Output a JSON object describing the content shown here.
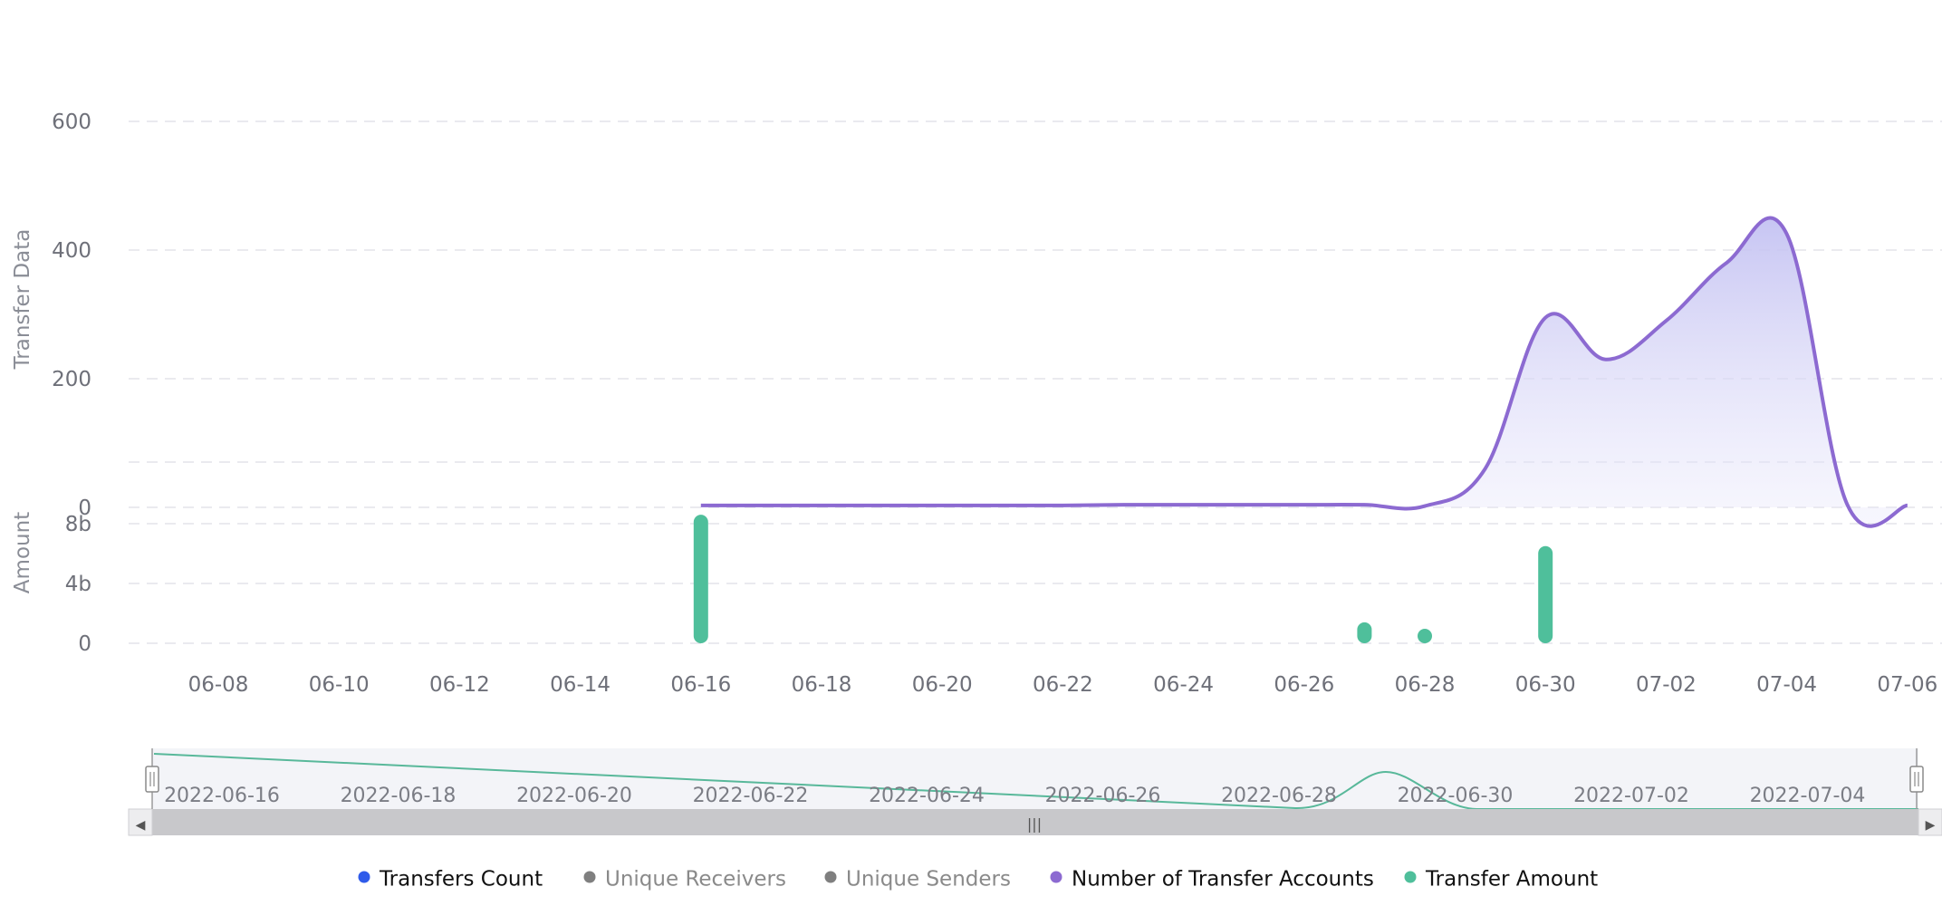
{
  "chart_data": {
    "type": "line",
    "x_dates": [
      "06-08",
      "06-09",
      "06-10",
      "06-11",
      "06-12",
      "06-13",
      "06-14",
      "06-15",
      "06-16",
      "06-17",
      "06-18",
      "06-19",
      "06-20",
      "06-21",
      "06-22",
      "06-23",
      "06-24",
      "06-25",
      "06-26",
      "06-27",
      "06-28",
      "06-29",
      "06-30",
      "07-01",
      "07-02",
      "07-03",
      "07-04",
      "07-05",
      "07-06"
    ],
    "x_tick_labels": [
      "06-08",
      "06-10",
      "06-12",
      "06-14",
      "06-16",
      "06-18",
      "06-20",
      "06-22",
      "06-24",
      "06-26",
      "06-28",
      "06-30",
      "07-02",
      "07-04",
      "07-06"
    ],
    "top_panel": {
      "ylabel": "Transfer Data",
      "ylim": [
        0,
        600
      ],
      "y_ticks": [
        "0",
        "200",
        "400",
        "600"
      ],
      "grid": true
    },
    "bottom_panel": {
      "ylabel": "Amount",
      "ylim": [
        0,
        8
      ],
      "y_ticks": [
        "0",
        "4b",
        "8b"
      ],
      "grid": true
    },
    "series": [
      {
        "name": "Transfers Count",
        "color": "#2f5bea",
        "legend_active": true,
        "panel": "top",
        "style": "line",
        "x": [],
        "values": []
      },
      {
        "name": "Unique Receivers",
        "color": "#7f7f7f",
        "legend_active": false,
        "panel": "top",
        "style": "line",
        "x": [],
        "values": []
      },
      {
        "name": "Unique Senders",
        "color": "#7f7f7f",
        "legend_active": false,
        "panel": "top",
        "style": "line",
        "x": [],
        "values": []
      },
      {
        "name": "Number of Transfer Accounts",
        "color": "#8c6ad1",
        "area_color": "#c9c8f3",
        "legend_active": true,
        "panel": "top",
        "style": "area",
        "x": [
          "06-16",
          "06-17",
          "06-18",
          "06-19",
          "06-20",
          "06-21",
          "06-22",
          "06-23",
          "06-24",
          "06-25",
          "06-26",
          "06-27",
          "06-28",
          "06-29",
          "06-30",
          "07-01",
          "07-02",
          "07-03",
          "07-04",
          "07-05",
          "07-06"
        ],
        "values": [
          3,
          3,
          3,
          3,
          3,
          3,
          3,
          4,
          4,
          4,
          4,
          4,
          2,
          60,
          295,
          230,
          290,
          380,
          425,
          5,
          3
        ]
      },
      {
        "name": "Transfer Amount",
        "color": "#4fbf9b",
        "legend_active": true,
        "panel": "bottom",
        "style": "bar",
        "x": [
          "06-16",
          "06-27",
          "06-28",
          "06-30"
        ],
        "values": [
          8.6,
          1.4,
          0.2,
          6.5
        ]
      }
    ]
  },
  "zoom": {
    "labels": [
      "2022-06-16",
      "2022-06-18",
      "2022-06-20",
      "2022-06-22",
      "2022-06-24",
      "2022-06-26",
      "2022-06-28",
      "2022-06-30",
      "2022-07-02",
      "2022-07-04"
    ],
    "handle_glyph": "|||",
    "left_arrow": "◀",
    "right_arrow": "▶"
  }
}
